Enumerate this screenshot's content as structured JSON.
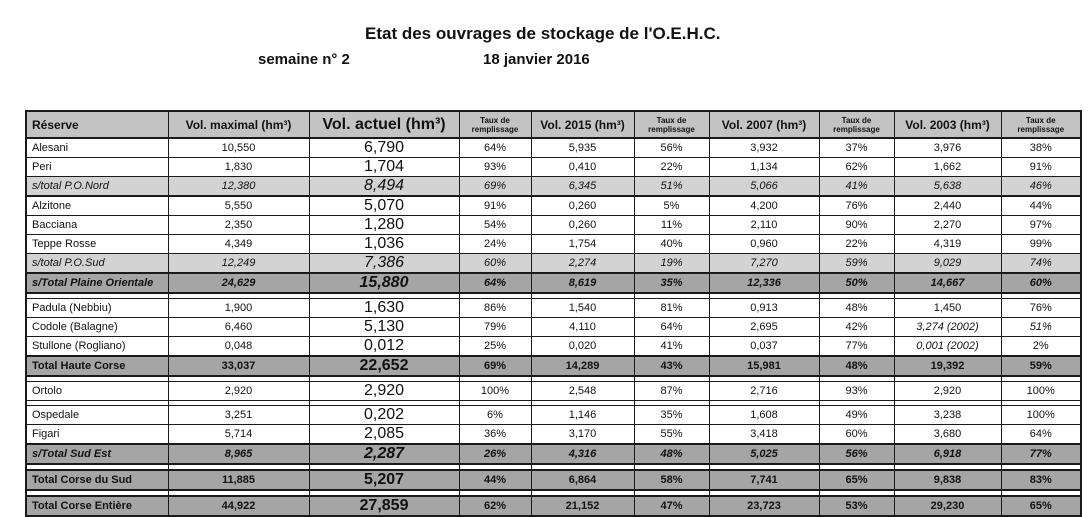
{
  "page": {
    "title": "Etat des ouvrages de stockage de l'O.E.H.C.",
    "week_label": "semaine n° 2",
    "date_label": "18 janvier 2016"
  },
  "colors": {
    "header_bg": "#c3c3c3",
    "subtotal_row_bg": "#d3d3d3",
    "total_row_bg": "#a5a5a5",
    "border": "#1a1a1a"
  },
  "table": {
    "headers": [
      "Réserve",
      "Vol. maximal (hm³)",
      "Vol. actuel (hm³)",
      "Taux de remplissage",
      "Vol. 2015 (hm³)",
      "Taux de remplissage",
      "Vol. 2007 (hm³)",
      "Taux de remplissage",
      "Vol. 2003 (hm³)",
      "Taux de remplissage"
    ],
    "rows": [
      {
        "type": "normal",
        "label": "Alesani",
        "values": [
          "10,550",
          "6,790",
          "64%",
          "5,935",
          "56%",
          "3,932",
          "37%",
          "3,976",
          "38%"
        ]
      },
      {
        "type": "normal",
        "label": "Peri",
        "values": [
          "1,830",
          "1,704",
          "93%",
          "0,410",
          "22%",
          "1,134",
          "62%",
          "1,662",
          "91%"
        ]
      },
      {
        "type": "light",
        "label": "s/total P.O.Nord",
        "values": [
          "12,380",
          "8,494",
          "69%",
          "6,345",
          "51%",
          "5,066",
          "41%",
          "5,638",
          "46%"
        ]
      },
      {
        "type": "normal",
        "label": "Alzitone",
        "values": [
          "5,550",
          "5,070",
          "91%",
          "0,260",
          "5%",
          "4,200",
          "76%",
          "2,440",
          "44%"
        ]
      },
      {
        "type": "normal",
        "label": "Bacciana",
        "values": [
          "2,350",
          "1,280",
          "54%",
          "0,260",
          "11%",
          "2,110",
          "90%",
          "2,270",
          "97%"
        ]
      },
      {
        "type": "normal",
        "label": "Teppe Rosse",
        "values": [
          "4,349",
          "1,036",
          "24%",
          "1,754",
          "40%",
          "0,960",
          "22%",
          "4,319",
          "99%"
        ]
      },
      {
        "type": "light",
        "label": "s/total P.O.Sud",
        "values": [
          "12,249",
          "7,386",
          "60%",
          "2,274",
          "19%",
          "7,270",
          "59%",
          "9,029",
          "74%"
        ]
      },
      {
        "type": "dark",
        "italic": true,
        "label": "s/Total Plaine Orientale",
        "values": [
          "24,629",
          "15,880",
          "64%",
          "8,619",
          "35%",
          "12,336",
          "50%",
          "14,667",
          "60%"
        ]
      },
      {
        "type": "gap"
      },
      {
        "type": "normal",
        "label": "Padula (Nebbiu)",
        "values": [
          "1,900",
          "1,630",
          "86%",
          "1,540",
          "81%",
          "0,913",
          "48%",
          "1,450",
          "76%"
        ]
      },
      {
        "type": "normal",
        "label": "Codole (Balagne)",
        "italic_cells": [
          8,
          9
        ],
        "values": [
          "6,460",
          "5,130",
          "79%",
          "4,110",
          "64%",
          "2,695",
          "42%",
          "3,274 (2002)",
          "51%"
        ]
      },
      {
        "type": "normal",
        "label": "Stullone (Rogliano)",
        "italic_cells": [
          8
        ],
        "values": [
          "0,048",
          "0,012",
          "25%",
          "0,020",
          "41%",
          "0,037",
          "77%",
          "0,001 (2002)",
          "2%"
        ]
      },
      {
        "type": "dark",
        "label": "Total Haute Corse",
        "values": [
          "33,037",
          "22,652",
          "69%",
          "14,289",
          "43%",
          "15,981",
          "48%",
          "19,392",
          "59%"
        ]
      },
      {
        "type": "gap"
      },
      {
        "type": "normal",
        "label": "Ortolo",
        "values": [
          "2,920",
          "2,920",
          "100%",
          "2,548",
          "87%",
          "2,716",
          "93%",
          "2,920",
          "100%"
        ]
      },
      {
        "type": "gap"
      },
      {
        "type": "normal",
        "label": "Ospedale",
        "values": [
          "3,251",
          "0,202",
          "6%",
          "1,146",
          "35%",
          "1,608",
          "49%",
          "3,238",
          "100%"
        ]
      },
      {
        "type": "normal",
        "label": "Figari",
        "values": [
          "5,714",
          "2,085",
          "36%",
          "3,170",
          "55%",
          "3,418",
          "60%",
          "3,680",
          "64%"
        ]
      },
      {
        "type": "dark",
        "italic": true,
        "label": "s/Total Sud Est",
        "values": [
          "8,965",
          "2,287",
          "26%",
          "4,316",
          "48%",
          "5,025",
          "56%",
          "6,918",
          "77%"
        ]
      },
      {
        "type": "gap"
      },
      {
        "type": "dark",
        "label": "Total Corse du Sud",
        "values": [
          "11,885",
          "5,207",
          "44%",
          "6,864",
          "58%",
          "7,741",
          "65%",
          "9,838",
          "83%"
        ]
      },
      {
        "type": "gap"
      },
      {
        "type": "dark",
        "label": "Total Corse Entière",
        "values": [
          "44,922",
          "27,859",
          "62%",
          "21,152",
          "47%",
          "23,723",
          "53%",
          "29,230",
          "65%"
        ]
      }
    ]
  }
}
